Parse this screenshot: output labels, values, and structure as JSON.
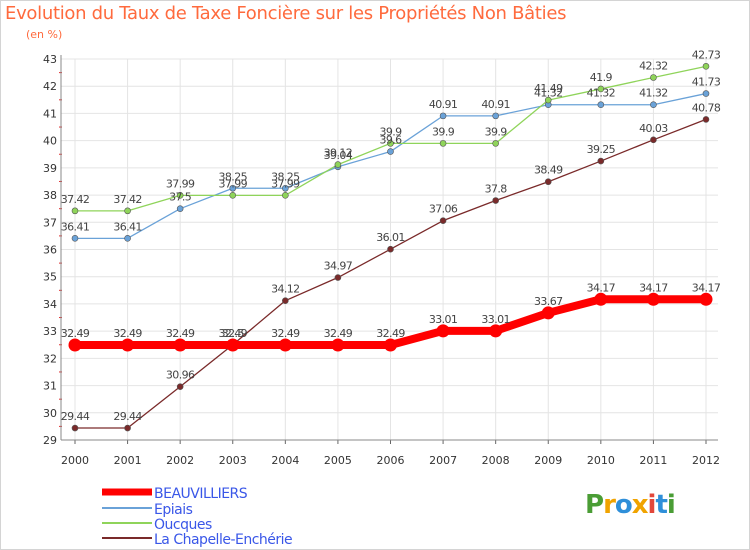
{
  "header": {
    "title": "Evolution du Taux de Taxe Foncière sur les Propriétés Non Bâties",
    "subtitle": "(en %)"
  },
  "logo": {
    "text": "Proxiti",
    "colors": [
      "#4a9d35",
      "#f0a300",
      "#2f8fd9",
      "#f0a300",
      "#e2473a",
      "#2f8fd9",
      "#4a9d35"
    ]
  },
  "chart_data": {
    "type": "line",
    "title": "Evolution du Taux de Taxe Foncière sur les Propriétés Non Bâties",
    "ylabel": "(en %)",
    "xlabel": "",
    "x": [
      2000,
      2001,
      2002,
      2003,
      2004,
      2005,
      2006,
      2007,
      2008,
      2009,
      2010,
      2011,
      2012
    ],
    "ylim": [
      29,
      43
    ],
    "yticks": [
      29,
      30,
      31,
      32,
      33,
      34,
      35,
      36,
      37,
      38,
      39,
      40,
      41,
      42,
      43
    ],
    "grid": true,
    "legend_position": "bottom-left",
    "series": [
      {
        "name": "BEAUVILLIERS",
        "color": "#ff0000",
        "values": [
          32.49,
          32.49,
          32.49,
          32.49,
          32.49,
          32.49,
          32.49,
          33.01,
          33.01,
          33.67,
          34.17,
          34.17,
          34.17
        ],
        "labels": [
          "32.49",
          "32.49",
          "32.49",
          "32.49",
          "32.49",
          "32.49",
          "32.49",
          "33.01",
          "33.01",
          "33.67",
          "34.17",
          "34.17",
          "34.17"
        ]
      },
      {
        "name": "Epiais",
        "color": "#6aa2d8",
        "values": [
          36.41,
          36.41,
          37.5,
          38.25,
          38.25,
          39.04,
          39.6,
          40.91,
          40.91,
          41.32,
          41.32,
          41.32,
          41.73
        ],
        "labels": [
          "36.41",
          "36.41",
          "37.5",
          "38.25",
          "38.25",
          "39.04",
          "39.6",
          "40.91",
          "40.91",
          "41.32",
          "41.32",
          "41.32",
          "41.73"
        ]
      },
      {
        "name": "Oucques",
        "color": "#8fd45a",
        "values": [
          37.42,
          37.42,
          37.99,
          37.99,
          37.99,
          39.12,
          39.9,
          39.9,
          39.9,
          41.49,
          41.9,
          42.32,
          42.73
        ],
        "labels": [
          "37.42",
          "37.42",
          "37.99",
          "37.99",
          "37.99",
          "39.12",
          "39.9",
          "39.9",
          "39.9",
          "41.49",
          "41.9",
          "42.32",
          "42.73"
        ]
      },
      {
        "name": "La Chapelle-Enchérie",
        "color": "#7a2a2a",
        "values": [
          29.44,
          29.44,
          30.96,
          32.5,
          34.12,
          34.97,
          36.01,
          37.06,
          37.8,
          38.49,
          39.25,
          40.03,
          40.78
        ],
        "labels": [
          "29.44",
          "29.44",
          "30.96",
          "32.5",
          "34.12",
          "34.97",
          "36.01",
          "37.06",
          "37.8",
          "38.49",
          "39.25",
          "40.03",
          "40.78"
        ]
      }
    ]
  }
}
